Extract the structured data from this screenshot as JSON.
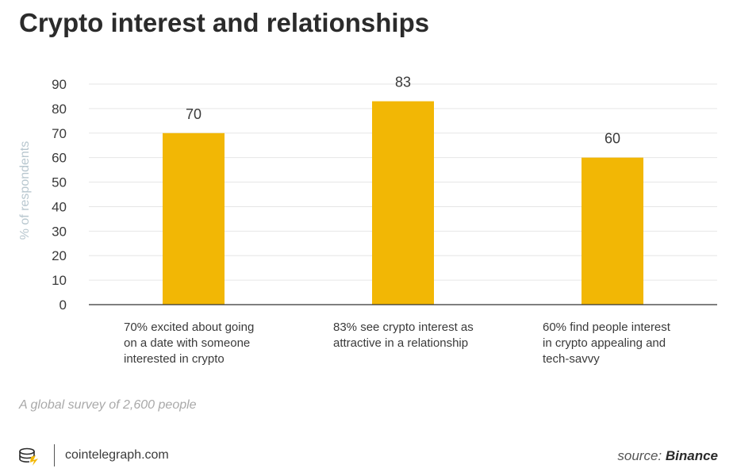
{
  "title": "Crypto interest and relationships",
  "subtitle_note": "A global survey of 2,600 people",
  "brand": "cointelegraph.com",
  "source_prefix": "source:",
  "source_name": "Binance",
  "colors": {
    "bar": "#f2b705",
    "grid": "#e6e6e6",
    "axis": "#333333",
    "tick": "#3a3a3a",
    "ylabel": "#b8c7cf"
  },
  "icons": {
    "logo": "cointelegraph-logo-icon"
  },
  "chart_data": {
    "type": "bar",
    "title": "Crypto interest and relationships",
    "ylabel": "% of respondents",
    "xlabel": "",
    "ylim": [
      0,
      90
    ],
    "yticks": [
      0,
      10,
      20,
      30,
      40,
      50,
      60,
      70,
      80,
      90
    ],
    "grid": true,
    "categories": [
      [
        "70% excited about going",
        "on a date with someone",
        "interested in crypto"
      ],
      [
        "83% see crypto interest as",
        "attractive in a relationship"
      ],
      [
        "60% find people interest",
        "in crypto appealing and",
        "tech-savvy"
      ]
    ],
    "values": [
      70,
      83,
      60
    ],
    "data_labels": [
      "70",
      "83",
      "60"
    ]
  }
}
